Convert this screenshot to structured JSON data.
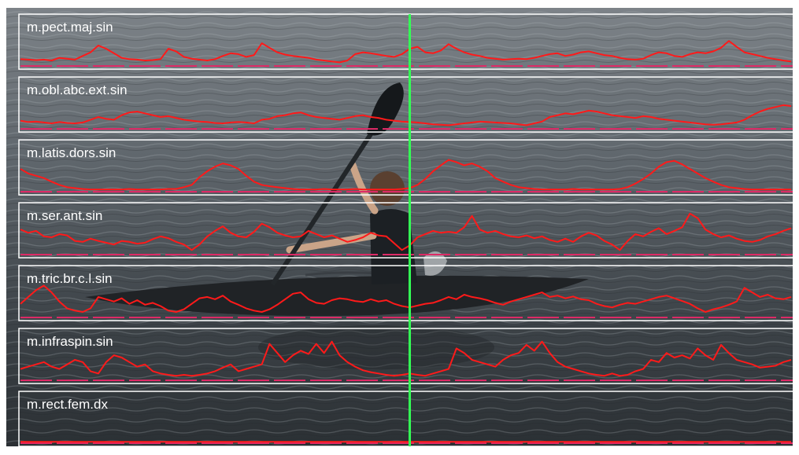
{
  "chart_data": {
    "type": "line",
    "title": "",
    "xlabel": "",
    "ylabel": "",
    "ylim": [
      0,
      1
    ],
    "grid": false,
    "cursor_fraction": 0.5,
    "colors": {
      "signal": "#ff1a1a",
      "baseline": "#dd2a66",
      "panel_border": "#ffffff",
      "cursor": "#33ff55",
      "label": "#ffffff"
    },
    "series": [
      {
        "name": "m.pect.maj.sin",
        "values": [
          0.15,
          0.14,
          0.13,
          0.14,
          0.12,
          0.18,
          0.16,
          0.14,
          0.22,
          0.3,
          0.45,
          0.38,
          0.28,
          0.18,
          0.15,
          0.14,
          0.12,
          0.13,
          0.15,
          0.38,
          0.32,
          0.2,
          0.16,
          0.14,
          0.12,
          0.15,
          0.22,
          0.28,
          0.26,
          0.2,
          0.24,
          0.5,
          0.4,
          0.3,
          0.25,
          0.22,
          0.2,
          0.18,
          0.14,
          0.12,
          0.1,
          0.08,
          0.12,
          0.26,
          0.3,
          0.28,
          0.25,
          0.22,
          0.2,
          0.26,
          0.38,
          0.42,
          0.3,
          0.28,
          0.34,
          0.48,
          0.38,
          0.3,
          0.25,
          0.22,
          0.18,
          0.16,
          0.14,
          0.15,
          0.16,
          0.15,
          0.18,
          0.22,
          0.26,
          0.28,
          0.22,
          0.25,
          0.3,
          0.32,
          0.28,
          0.24,
          0.22,
          0.18,
          0.15,
          0.14,
          0.16,
          0.24,
          0.3,
          0.28,
          0.22,
          0.2,
          0.26,
          0.3,
          0.28,
          0.32,
          0.4,
          0.55,
          0.42,
          0.3,
          0.26,
          0.22,
          0.18,
          0.15,
          0.12,
          0.1
        ]
      },
      {
        "name": "m.obl.abc.ext.sin",
        "values": [
          0.18,
          0.15,
          0.16,
          0.14,
          0.12,
          0.15,
          0.13,
          0.12,
          0.14,
          0.2,
          0.26,
          0.22,
          0.2,
          0.3,
          0.36,
          0.38,
          0.34,
          0.3,
          0.26,
          0.28,
          0.24,
          0.2,
          0.18,
          0.16,
          0.15,
          0.13,
          0.12,
          0.14,
          0.15,
          0.14,
          0.12,
          0.2,
          0.22,
          0.28,
          0.3,
          0.34,
          0.36,
          0.3,
          0.26,
          0.24,
          0.22,
          0.2,
          0.24,
          0.28,
          0.3,
          0.26,
          0.24,
          0.2,
          0.18,
          0.16,
          0.15,
          0.14,
          0.12,
          0.1,
          0.09,
          0.08,
          0.1,
          0.12,
          0.14,
          0.16,
          0.15,
          0.14,
          0.13,
          0.12,
          0.1,
          0.08,
          0.12,
          0.16,
          0.26,
          0.3,
          0.34,
          0.32,
          0.36,
          0.4,
          0.38,
          0.34,
          0.3,
          0.28,
          0.26,
          0.24,
          0.28,
          0.26,
          0.22,
          0.2,
          0.18,
          0.16,
          0.14,
          0.12,
          0.1,
          0.09,
          0.1,
          0.12,
          0.14,
          0.2,
          0.3,
          0.38,
          0.44,
          0.48,
          0.52,
          0.5
        ]
      },
      {
        "name": "m.latis.dors.sin",
        "values": [
          0.5,
          0.4,
          0.35,
          0.3,
          0.22,
          0.15,
          0.1,
          0.08,
          0.06,
          0.05,
          0.05,
          0.05,
          0.05,
          0.05,
          0.06,
          0.05,
          0.05,
          0.05,
          0.05,
          0.06,
          0.06,
          0.1,
          0.15,
          0.32,
          0.45,
          0.55,
          0.62,
          0.58,
          0.5,
          0.35,
          0.22,
          0.15,
          0.12,
          0.1,
          0.08,
          0.06,
          0.05,
          0.05,
          0.05,
          0.06,
          0.05,
          0.05,
          0.05,
          0.06,
          0.05,
          0.05,
          0.05,
          0.05,
          0.05,
          0.06,
          0.08,
          0.15,
          0.28,
          0.45,
          0.58,
          0.7,
          0.65,
          0.58,
          0.62,
          0.55,
          0.45,
          0.3,
          0.22,
          0.15,
          0.1,
          0.08,
          0.06,
          0.05,
          0.05,
          0.05,
          0.05,
          0.06,
          0.05,
          0.05,
          0.05,
          0.05,
          0.05,
          0.06,
          0.1,
          0.18,
          0.28,
          0.4,
          0.55,
          0.65,
          0.68,
          0.6,
          0.5,
          0.4,
          0.3,
          0.22,
          0.15,
          0.1,
          0.08,
          0.06,
          0.05,
          0.05,
          0.05,
          0.05,
          0.05,
          0.05
        ]
      },
      {
        "name": "m.ser.ant.sin",
        "values": [
          0.55,
          0.48,
          0.52,
          0.4,
          0.38,
          0.45,
          0.42,
          0.3,
          0.28,
          0.35,
          0.3,
          0.26,
          0.22,
          0.3,
          0.28,
          0.24,
          0.26,
          0.34,
          0.4,
          0.36,
          0.28,
          0.22,
          0.1,
          0.22,
          0.4,
          0.52,
          0.62,
          0.48,
          0.4,
          0.38,
          0.5,
          0.68,
          0.6,
          0.48,
          0.42,
          0.38,
          0.4,
          0.52,
          0.45,
          0.38,
          0.42,
          0.35,
          0.28,
          0.32,
          0.38,
          0.48,
          0.42,
          0.4,
          0.25,
          0.1,
          0.2,
          0.38,
          0.45,
          0.52,
          0.48,
          0.5,
          0.48,
          0.6,
          0.85,
          0.55,
          0.48,
          0.52,
          0.45,
          0.4,
          0.38,
          0.42,
          0.36,
          0.4,
          0.32,
          0.28,
          0.35,
          0.28,
          0.4,
          0.48,
          0.42,
          0.3,
          0.22,
          0.1,
          0.3,
          0.45,
          0.4,
          0.5,
          0.58,
          0.45,
          0.52,
          0.6,
          0.9,
          0.8,
          0.55,
          0.45,
          0.38,
          0.42,
          0.35,
          0.3,
          0.28,
          0.32,
          0.4,
          0.45,
          0.52,
          0.58
        ]
      },
      {
        "name": "m.tric.br.c.l.sin",
        "values": [
          0.3,
          0.45,
          0.6,
          0.7,
          0.55,
          0.35,
          0.2,
          0.15,
          0.12,
          0.2,
          0.45,
          0.4,
          0.35,
          0.42,
          0.3,
          0.38,
          0.28,
          0.32,
          0.25,
          0.15,
          0.12,
          0.18,
          0.3,
          0.42,
          0.45,
          0.4,
          0.48,
          0.35,
          0.28,
          0.2,
          0.15,
          0.12,
          0.18,
          0.28,
          0.4,
          0.52,
          0.55,
          0.4,
          0.32,
          0.3,
          0.38,
          0.42,
          0.4,
          0.36,
          0.34,
          0.4,
          0.35,
          0.38,
          0.3,
          0.25,
          0.22,
          0.26,
          0.3,
          0.32,
          0.38,
          0.45,
          0.4,
          0.5,
          0.45,
          0.42,
          0.38,
          0.32,
          0.28,
          0.35,
          0.4,
          0.45,
          0.5,
          0.55,
          0.45,
          0.48,
          0.42,
          0.46,
          0.4,
          0.38,
          0.3,
          0.25,
          0.22,
          0.28,
          0.32,
          0.3,
          0.35,
          0.4,
          0.45,
          0.48,
          0.42,
          0.36,
          0.3,
          0.2,
          0.12,
          0.18,
          0.22,
          0.28,
          0.35,
          0.65,
          0.55,
          0.45,
          0.5,
          0.42,
          0.4,
          0.45
        ]
      },
      {
        "name": "m.infraspin.sin",
        "values": [
          0.25,
          0.3,
          0.35,
          0.4,
          0.3,
          0.25,
          0.35,
          0.45,
          0.4,
          0.2,
          0.15,
          0.4,
          0.55,
          0.5,
          0.4,
          0.3,
          0.35,
          0.2,
          0.15,
          0.12,
          0.1,
          0.12,
          0.1,
          0.12,
          0.15,
          0.2,
          0.28,
          0.35,
          0.2,
          0.25,
          0.3,
          0.35,
          0.8,
          0.6,
          0.4,
          0.55,
          0.65,
          0.58,
          0.8,
          0.6,
          0.85,
          0.55,
          0.4,
          0.3,
          0.22,
          0.18,
          0.15,
          0.12,
          0.1,
          0.12,
          0.15,
          0.12,
          0.1,
          0.15,
          0.2,
          0.25,
          0.7,
          0.6,
          0.45,
          0.4,
          0.35,
          0.3,
          0.45,
          0.55,
          0.6,
          0.78,
          0.65,
          0.85,
          0.6,
          0.4,
          0.3,
          0.25,
          0.2,
          0.15,
          0.12,
          0.1,
          0.15,
          0.1,
          0.12,
          0.2,
          0.25,
          0.45,
          0.4,
          0.6,
          0.5,
          0.55,
          0.48,
          0.7,
          0.55,
          0.45,
          0.78,
          0.6,
          0.45,
          0.4,
          0.35,
          0.28,
          0.3,
          0.32,
          0.4,
          0.45
        ]
      },
      {
        "name": "m.rect.fem.dx",
        "values": [
          0.03,
          0.03,
          0.03,
          0.03,
          0.03,
          0.03,
          0.03,
          0.03,
          0.03,
          0.03,
          0.03,
          0.03,
          0.03,
          0.03,
          0.03,
          0.03,
          0.03,
          0.03,
          0.03,
          0.03,
          0.03,
          0.03,
          0.03,
          0.03,
          0.03,
          0.03,
          0.03,
          0.03,
          0.03,
          0.03,
          0.03,
          0.03,
          0.03,
          0.03,
          0.03,
          0.03,
          0.03,
          0.03,
          0.03,
          0.03,
          0.03,
          0.03,
          0.03,
          0.03,
          0.03,
          0.03,
          0.03,
          0.03,
          0.03,
          0.03,
          0.03,
          0.03,
          0.03,
          0.03,
          0.03,
          0.03,
          0.03,
          0.03,
          0.03,
          0.03,
          0.03,
          0.03,
          0.03,
          0.03,
          0.03,
          0.03,
          0.03,
          0.03,
          0.03,
          0.03,
          0.03,
          0.03,
          0.03,
          0.03,
          0.03,
          0.03,
          0.03,
          0.03,
          0.03,
          0.03,
          0.03,
          0.03,
          0.03,
          0.03,
          0.03,
          0.03,
          0.03,
          0.03,
          0.03,
          0.03,
          0.03,
          0.03,
          0.03,
          0.03,
          0.03,
          0.03,
          0.03,
          0.03,
          0.03,
          0.03
        ]
      }
    ]
  }
}
